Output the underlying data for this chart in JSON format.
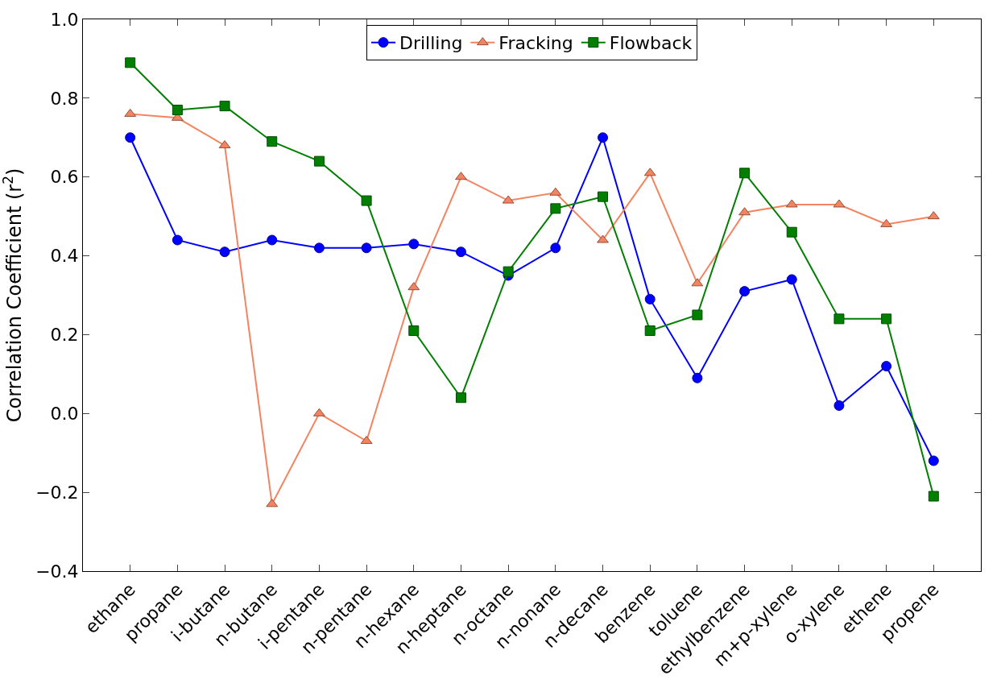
{
  "chart_data": {
    "type": "line",
    "ylabel": "Correlation Coefficient (r$^{2}$)",
    "categories": [
      "ethane",
      "propane",
      "i-butane",
      "n-butane",
      "i-pentane",
      "n-pentane",
      "n-hexane",
      "n-heptane",
      "n-octane",
      "n-nonane",
      "n-decane",
      "benzene",
      "toluene",
      "ethylbenzene",
      "m+p-xylene",
      "o-xylene",
      "ethene",
      "propene"
    ],
    "series": [
      {
        "name": "Drilling",
        "color": "#0000ff",
        "marker": "circle",
        "values": [
          0.7,
          0.44,
          0.41,
          0.44,
          0.42,
          0.42,
          0.43,
          0.41,
          0.35,
          0.42,
          0.7,
          0.29,
          0.09,
          0.31,
          0.34,
          0.02,
          0.12,
          -0.12
        ]
      },
      {
        "name": "Fracking",
        "color": "#f4845f",
        "marker": "triangle",
        "values": [
          0.76,
          0.75,
          0.68,
          -0.23,
          0.0,
          -0.07,
          0.32,
          0.6,
          0.54,
          0.56,
          0.44,
          0.61,
          0.33,
          0.51,
          0.53,
          0.53,
          0.48,
          0.5
        ]
      },
      {
        "name": "Flowback",
        "color": "#007f00",
        "marker": "square",
        "values": [
          0.89,
          0.77,
          0.78,
          0.69,
          0.64,
          0.54,
          0.21,
          0.04,
          0.36,
          0.52,
          0.55,
          0.21,
          0.25,
          0.61,
          0.46,
          0.24,
          0.24,
          -0.21
        ]
      }
    ],
    "ylim": [
      -0.4,
      1.0
    ],
    "yticks": [
      {
        "value": -0.4,
        "label": "−0.4"
      },
      {
        "value": -0.2,
        "label": "−0.2"
      },
      {
        "value": 0.0,
        "label": "0.0"
      },
      {
        "value": 0.2,
        "label": "0.2"
      },
      {
        "value": 0.4,
        "label": "0.4"
      },
      {
        "value": 0.6,
        "label": "0.6"
      },
      {
        "value": 0.8,
        "label": "0.8"
      },
      {
        "value": 1.0,
        "label": "1.0"
      }
    ],
    "legend": "top",
    "line_style": "solid"
  }
}
